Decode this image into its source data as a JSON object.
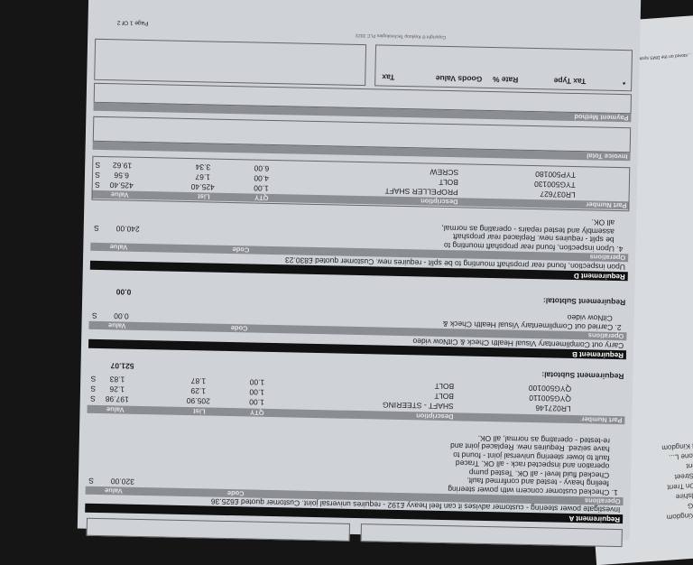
{
  "second_page": {
    "header_note": "...stored on the DMS system ... proof of ownership",
    "address": [
      "United Kingdom",
      "Stratstone L...",
      "On Trent",
      "Broad Street",
      "Stoke On Trent",
      "Staffordshire",
      "ST1 4EG",
      "United Kingdom"
    ]
  },
  "req_a": {
    "title": "Requirement A",
    "description": "Investigate power steering - customer advises it can feel heavy £192 - requires universal joint. Customer quoted £625.36",
    "op_header": "Operations",
    "code_label": "Code",
    "value_label": "Value",
    "op_lines": [
      "1.  Checked customer concern with power steering",
      "feeling heavy - tested and confirmed fault.",
      "Checked fluid level - all OK. Tested pump",
      "operation and inspected rack - all OK. Traced",
      "fault to lower steering universal joint - found to",
      "have seized. Requires new. Replaced joint and",
      "re-tested - operating as normal, all OK."
    ],
    "op_value": "320.00",
    "op_tax": "S",
    "parts_header": {
      "part": "Part Number",
      "desc": "Description",
      "qty": "QTY",
      "list": "List",
      "value": "Value"
    },
    "parts": [
      {
        "part": "LR027146",
        "desc": "SHAFT - STEERING",
        "qty": "1.00",
        "list": "205.90",
        "value": "197.98",
        "tax": "S"
      },
      {
        "part": "QYG500110",
        "desc": "BOLT",
        "qty": "1.00",
        "list": "1.29",
        "value": "1.26",
        "tax": "S"
      },
      {
        "part": "QYG500100",
        "desc": "BOLT",
        "qty": "1.00",
        "list": "1.87",
        "value": "1.83",
        "tax": "S"
      }
    ],
    "subtotal_label": "Requirement Subtotal:",
    "subtotal": "521.07"
  },
  "req_b": {
    "title": "Requirement B",
    "description": "Carry out Complimentary Visual Health Check & CitNow video",
    "op_header": "Operations",
    "code_label": "Code",
    "value_label": "Value",
    "op_lines": [
      "2.  Carried out Complimentary Visual Health Check &",
      "CitNow video"
    ],
    "op_value": "0.00",
    "op_tax": "S",
    "subtotal_label": "Requirement Subtotal:",
    "subtotal": "0.00"
  },
  "req_d": {
    "title": "Requirement D",
    "description": "Upon inspection, found rear propshaft mounting to be split - requires new. Customer quoted £830.23",
    "op_header": "Operations",
    "code_label": "Code",
    "value_label": "Value",
    "op_lines": [
      "4.  Upon inspection, found rear propshaft mounting to",
      "be split - requires new. Replaced rear propshaft",
      "assembly and tested repairs - operating as normal,",
      "all OK."
    ],
    "op_value": "240.00",
    "op_tax": "S",
    "parts_header": {
      "part": "Part Number",
      "desc": "Description",
      "qty": "QTY",
      "list": "List",
      "value": "Value"
    },
    "parts": [
      {
        "part": "LR037627",
        "desc": "PROPELLER SHAFT",
        "qty": "1.00",
        "list": "425.40",
        "value": "425.40",
        "tax": "S"
      },
      {
        "part": "TYG500130",
        "desc": "BOLT",
        "qty": "4.00",
        "list": "1.67",
        "value": "6.56",
        "tax": "S"
      },
      {
        "part": "TYP500180",
        "desc": "SCREW",
        "qty": "6.00",
        "list": "3.34",
        "value": "19.62",
        "tax": "S"
      }
    ]
  },
  "totals": {
    "invoice_total": "Invoice Total",
    "payment_method": "Payment Method",
    "tax_type": "Tax Type",
    "rate": "Rate %",
    "goods_value": "Goods Value",
    "tax": "Tax",
    "marker": "*"
  },
  "footer": {
    "copyright": "Copyright © Keyloop Technologies PLC 2023",
    "page": "Page 1 Of 2"
  }
}
